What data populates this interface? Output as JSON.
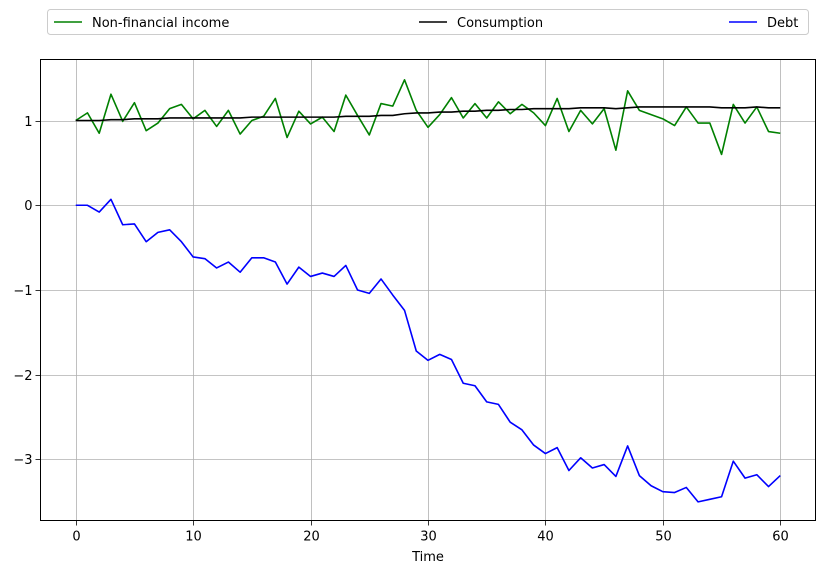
{
  "chart_data": {
    "type": "line",
    "title": "",
    "xlabel": "Time",
    "ylabel": "",
    "xlim": [
      -3,
      63
    ],
    "ylim": [
      -3.72,
      1.72
    ],
    "xticks": [
      0,
      10,
      20,
      30,
      40,
      50,
      60
    ],
    "yticks": [
      -3,
      -2,
      -1,
      0,
      1
    ],
    "grid": true,
    "legend_position": "top, above plot, spanning width",
    "series": [
      {
        "name": "Non-financial income",
        "color": "#008000",
        "x": [
          0,
          1,
          2,
          3,
          4,
          5,
          6,
          7,
          8,
          9,
          10,
          11,
          12,
          13,
          14,
          15,
          16,
          17,
          18,
          19,
          20,
          21,
          22,
          23,
          24,
          25,
          26,
          27,
          28,
          29,
          30,
          31,
          32,
          33,
          34,
          35,
          36,
          37,
          38,
          39,
          40,
          41,
          42,
          43,
          44,
          45,
          46,
          47,
          48,
          49,
          50,
          51,
          52,
          53,
          54,
          55,
          56,
          57,
          58,
          59,
          60
        ],
        "values": [
          1.0,
          1.09,
          0.85,
          1.31,
          0.99,
          1.21,
          0.88,
          0.97,
          1.14,
          1.19,
          1.02,
          1.12,
          0.93,
          1.12,
          0.84,
          1.0,
          1.05,
          1.26,
          0.8,
          1.11,
          0.96,
          1.04,
          0.87,
          1.3,
          1.06,
          0.83,
          1.2,
          1.17,
          1.48,
          1.12,
          0.92,
          1.07,
          1.27,
          1.03,
          1.2,
          1.03,
          1.22,
          1.08,
          1.19,
          1.09,
          0.94,
          1.26,
          0.87,
          1.12,
          0.96,
          1.14,
          0.65,
          1.35,
          1.12,
          1.07,
          1.02,
          0.94,
          1.16,
          0.97,
          0.97,
          0.6,
          1.19,
          0.97,
          1.16,
          0.87,
          0.85
        ]
      },
      {
        "name": "Consumption",
        "color": "#000000",
        "x": [
          0,
          1,
          2,
          3,
          4,
          5,
          6,
          7,
          8,
          9,
          10,
          11,
          12,
          13,
          14,
          15,
          16,
          17,
          18,
          19,
          20,
          21,
          22,
          23,
          24,
          25,
          26,
          27,
          28,
          29,
          30,
          31,
          32,
          33,
          34,
          35,
          36,
          37,
          38,
          39,
          40,
          41,
          42,
          43,
          44,
          45,
          46,
          47,
          48,
          49,
          50,
          51,
          52,
          53,
          54,
          55,
          56,
          57,
          58,
          59,
          60
        ],
        "values": [
          1.0,
          1.0,
          1.0,
          1.01,
          1.01,
          1.02,
          1.02,
          1.02,
          1.03,
          1.03,
          1.03,
          1.03,
          1.03,
          1.03,
          1.03,
          1.04,
          1.04,
          1.04,
          1.04,
          1.04,
          1.04,
          1.04,
          1.04,
          1.05,
          1.05,
          1.05,
          1.06,
          1.06,
          1.08,
          1.09,
          1.09,
          1.1,
          1.1,
          1.11,
          1.11,
          1.12,
          1.12,
          1.13,
          1.13,
          1.14,
          1.14,
          1.14,
          1.14,
          1.15,
          1.15,
          1.15,
          1.14,
          1.15,
          1.16,
          1.16,
          1.16,
          1.16,
          1.16,
          1.16,
          1.16,
          1.15,
          1.15,
          1.15,
          1.16,
          1.15,
          1.15
        ]
      },
      {
        "name": "Debt",
        "color": "#0000ff",
        "x": [
          0,
          1,
          2,
          3,
          4,
          5,
          6,
          7,
          8,
          9,
          10,
          11,
          12,
          13,
          14,
          15,
          16,
          17,
          18,
          19,
          20,
          21,
          22,
          23,
          24,
          25,
          26,
          27,
          28,
          29,
          30,
          31,
          32,
          33,
          34,
          35,
          36,
          37,
          38,
          39,
          40,
          41,
          42,
          43,
          44,
          45,
          46,
          47,
          48,
          49,
          50,
          51,
          52,
          53,
          54,
          55,
          56,
          57,
          58,
          59,
          60
        ],
        "values": [
          0.0,
          0.0,
          -0.08,
          0.07,
          -0.23,
          -0.22,
          -0.43,
          -0.32,
          -0.29,
          -0.43,
          -0.61,
          -0.63,
          -0.74,
          -0.67,
          -0.79,
          -0.62,
          -0.62,
          -0.67,
          -0.93,
          -0.73,
          -0.84,
          -0.8,
          -0.84,
          -0.71,
          -1.0,
          -1.04,
          -0.87,
          -1.06,
          -1.24,
          -1.72,
          -1.83,
          -1.76,
          -1.82,
          -2.1,
          -2.13,
          -2.32,
          -2.35,
          -2.56,
          -2.65,
          -2.83,
          -2.93,
          -2.86,
          -3.13,
          -2.98,
          -3.1,
          -3.06,
          -3.2,
          -2.84,
          -3.19,
          -3.31,
          -3.38,
          -3.39,
          -3.33,
          -3.5,
          -3.47,
          -3.44,
          -3.02,
          -3.22,
          -3.18,
          -3.32,
          -3.19
        ]
      }
    ]
  }
}
